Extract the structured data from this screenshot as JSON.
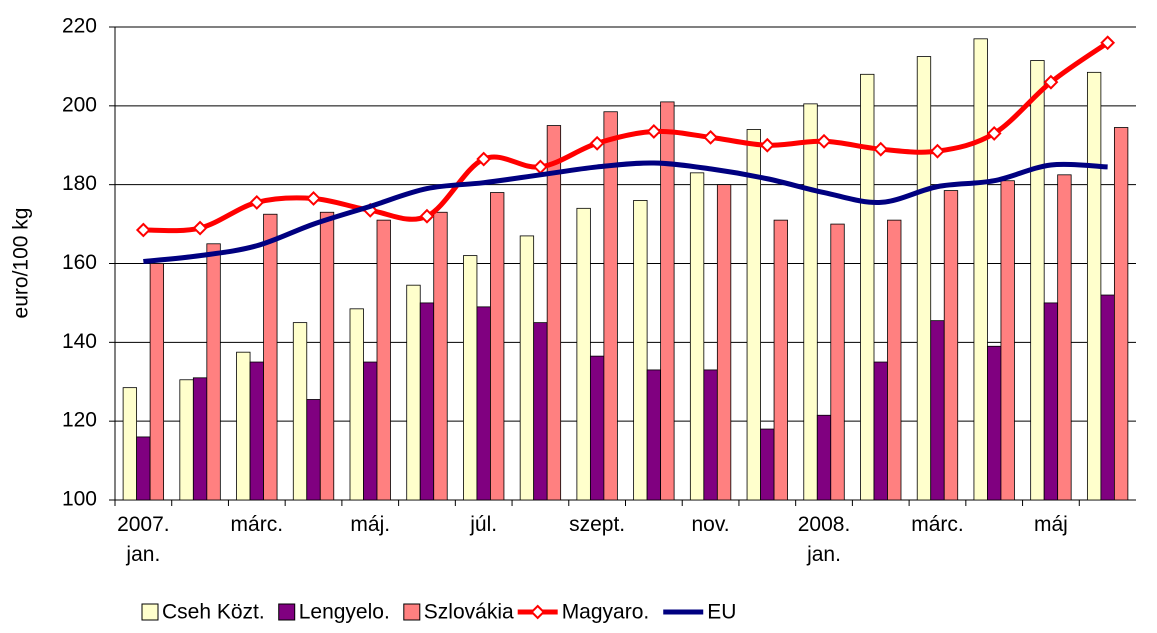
{
  "chart_data": {
    "type": "bar-line",
    "ylabel": "euro/100 kg",
    "categories": [
      "2007.\njan.",
      null,
      "márc.",
      null,
      "máj.",
      null,
      "júl.",
      null,
      "szept.",
      null,
      "nov.",
      null,
      "2008.\njan.",
      null,
      "márc.",
      null,
      "máj",
      null
    ],
    "series": [
      {
        "name": "Cseh Közt.",
        "type": "bar",
        "color": "#ffffcc",
        "values": [
          128.5,
          130.5,
          137.5,
          145,
          148.5,
          154.5,
          162,
          167,
          174,
          176,
          183,
          194,
          200.5,
          208,
          212.5,
          217,
          211.5,
          208.5
        ]
      },
      {
        "name": "Lengyelo.",
        "type": "bar",
        "color": "#800080",
        "values": [
          116,
          131,
          135,
          125.5,
          135,
          150,
          149,
          145,
          136.5,
          133,
          133,
          118,
          121.5,
          135,
          145.5,
          139,
          150,
          152
        ]
      },
      {
        "name": "Szlovákia",
        "type": "bar",
        "color": "#ff8080",
        "values": [
          160,
          165,
          172.5,
          173,
          171,
          173,
          178,
          195,
          198.5,
          201,
          180,
          171,
          170,
          171,
          178.5,
          181,
          182.5,
          194.5
        ]
      },
      {
        "name": "Magyaro.",
        "type": "line",
        "color": "#ff0000",
        "marker": "diamond",
        "values": [
          168.5,
          169,
          175.5,
          176.5,
          173.5,
          172,
          186.5,
          184.5,
          190.5,
          193.5,
          192,
          190,
          191,
          189,
          188.5,
          193,
          206,
          216
        ]
      },
      {
        "name": "EU",
        "type": "line",
        "color": "#000080",
        "values": [
          160.5,
          162,
          164.5,
          170,
          174.5,
          179,
          180.5,
          182.5,
          184.5,
          185.5,
          184,
          181.5,
          178,
          175.5,
          179.5,
          181,
          185,
          184.5
        ]
      }
    ],
    "ylim": [
      100,
      220
    ],
    "yticks": [
      100,
      120,
      140,
      160,
      180,
      200,
      220
    ],
    "grid": true,
    "legend": "bottom"
  }
}
